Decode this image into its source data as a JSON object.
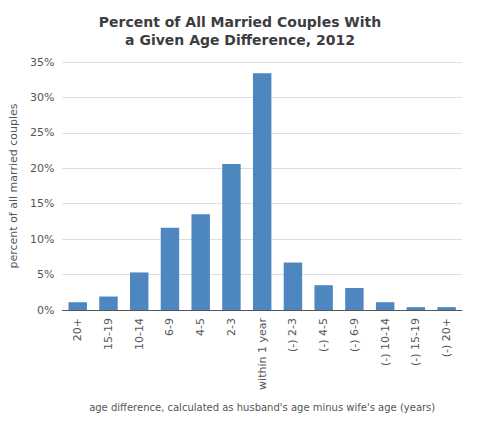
{
  "chart_data": {
    "type": "bar",
    "title": "Percent of All Married Couples With\na Given Age Difference, 2012",
    "categories": [
      "20+",
      "15-19",
      "10-14",
      "6-9",
      "4-5",
      "2-3",
      "within 1 year",
      "(-) 2-3",
      "(-) 4-5",
      "(-) 6-9",
      "(-) 10-14",
      "(-) 15-19",
      "(-) 20+"
    ],
    "values": [
      1.1,
      1.9,
      5.3,
      11.6,
      13.5,
      20.6,
      33.4,
      6.7,
      3.5,
      3.1,
      1.1,
      0.4,
      0.4
    ],
    "color": "#4e86c0",
    "xlabel": "age difference, calculated as husband's age minus wife's age (years)",
    "ylabel": "percent of all married couples",
    "ylim": [
      0,
      35
    ],
    "yticks": [
      {
        "value": 0,
        "label": "0%"
      },
      {
        "value": 5,
        "label": "5%"
      },
      {
        "value": 10,
        "label": "10%"
      },
      {
        "value": 15,
        "label": "15%"
      },
      {
        "value": 20,
        "label": "20%"
      },
      {
        "value": 25,
        "label": "25%"
      },
      {
        "value": 30,
        "label": "30%"
      },
      {
        "value": 35,
        "label": "35%"
      }
    ],
    "grid": true
  }
}
